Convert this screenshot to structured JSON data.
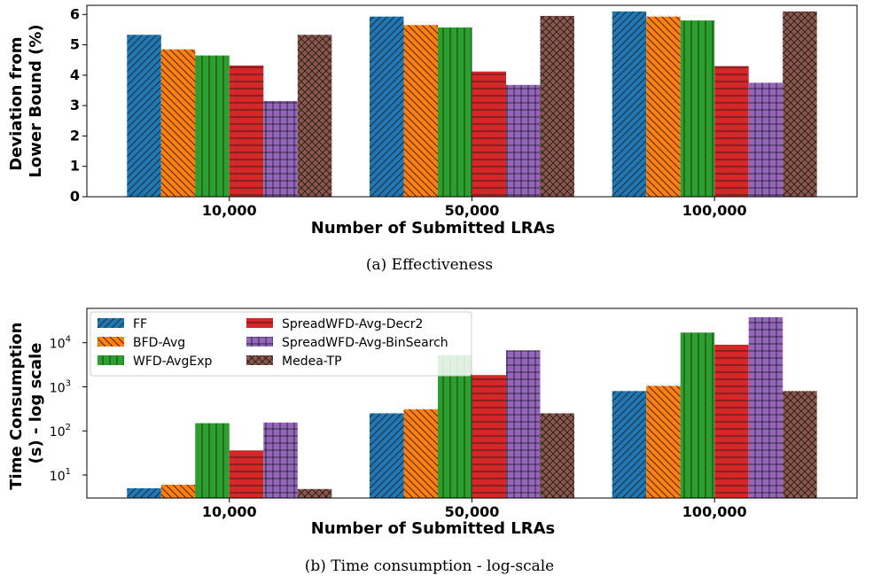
{
  "chart_data": [
    {
      "type": "bar",
      "caption": "(a) Effectiveness",
      "categories": [
        "10,000",
        "50,000",
        "100,000"
      ],
      "xlabel": "Number of Submitted LRAs",
      "ylabel_lines": [
        "Deviation from",
        "Lower Bound (%)"
      ],
      "ylim": [
        0,
        6.3
      ],
      "yticks": [
        0,
        1,
        2,
        3,
        4,
        5,
        6
      ],
      "scale": "linear",
      "grid": false,
      "legend": "none",
      "series": [
        {
          "name": "FF",
          "color": "#1f77b4",
          "hatch": "diag-right",
          "values": [
            5.33,
            5.93,
            6.1
          ]
        },
        {
          "name": "BFD-Avg",
          "color": "#ff7f0e",
          "hatch": "diag-left",
          "values": [
            4.85,
            5.65,
            5.93
          ]
        },
        {
          "name": "WFD-AvgExp",
          "color": "#2ca02c",
          "hatch": "vertical",
          "values": [
            4.65,
            5.57,
            5.8
          ]
        },
        {
          "name": "SpreadWFD-Avg-Decr2",
          "color": "#d62728",
          "hatch": "horizontal",
          "values": [
            4.32,
            4.12,
            4.3
          ]
        },
        {
          "name": "SpreadWFD-Avg-BinSearch",
          "color": "#9467bd",
          "hatch": "grid",
          "values": [
            3.15,
            3.68,
            3.75
          ]
        },
        {
          "name": "Medea-TP",
          "color": "#8c564b",
          "hatch": "cross",
          "values": [
            5.33,
            5.95,
            6.1
          ]
        }
      ]
    },
    {
      "type": "bar",
      "caption": "(b) Time consumption - log-scale",
      "categories": [
        "10,000",
        "50,000",
        "100,000"
      ],
      "xlabel": "Number of Submitted LRAs",
      "ylabel_lines": [
        "Time Consumption",
        "(s) - log scale"
      ],
      "ylim": [
        3,
        60000
      ],
      "yticks": [
        10,
        100,
        1000,
        10000
      ],
      "ytick_labels": [
        [
          "10",
          "1"
        ],
        [
          "10",
          "2"
        ],
        [
          "10",
          "3"
        ],
        [
          "10",
          "4"
        ]
      ],
      "scale": "log",
      "grid": false,
      "legend": "top-left",
      "series": [
        {
          "name": "FF",
          "color": "#1f77b4",
          "hatch": "diag-right",
          "values": [
            5,
            250,
            800
          ]
        },
        {
          "name": "BFD-Avg",
          "color": "#ff7f0e",
          "hatch": "diag-left",
          "values": [
            6,
            310,
            1050
          ]
        },
        {
          "name": "WFD-AvgExp",
          "color": "#2ca02c",
          "hatch": "vertical",
          "values": [
            150,
            5200,
            17000
          ]
        },
        {
          "name": "SpreadWFD-Avg-Decr2",
          "color": "#d62728",
          "hatch": "horizontal",
          "values": [
            36,
            1850,
            9000
          ]
        },
        {
          "name": "SpreadWFD-Avg-BinSearch",
          "color": "#9467bd",
          "hatch": "grid",
          "values": [
            155,
            6700,
            38000
          ]
        },
        {
          "name": "Medea-TP",
          "color": "#8c564b",
          "hatch": "cross",
          "values": [
            4.8,
            250,
            800
          ]
        }
      ]
    }
  ]
}
